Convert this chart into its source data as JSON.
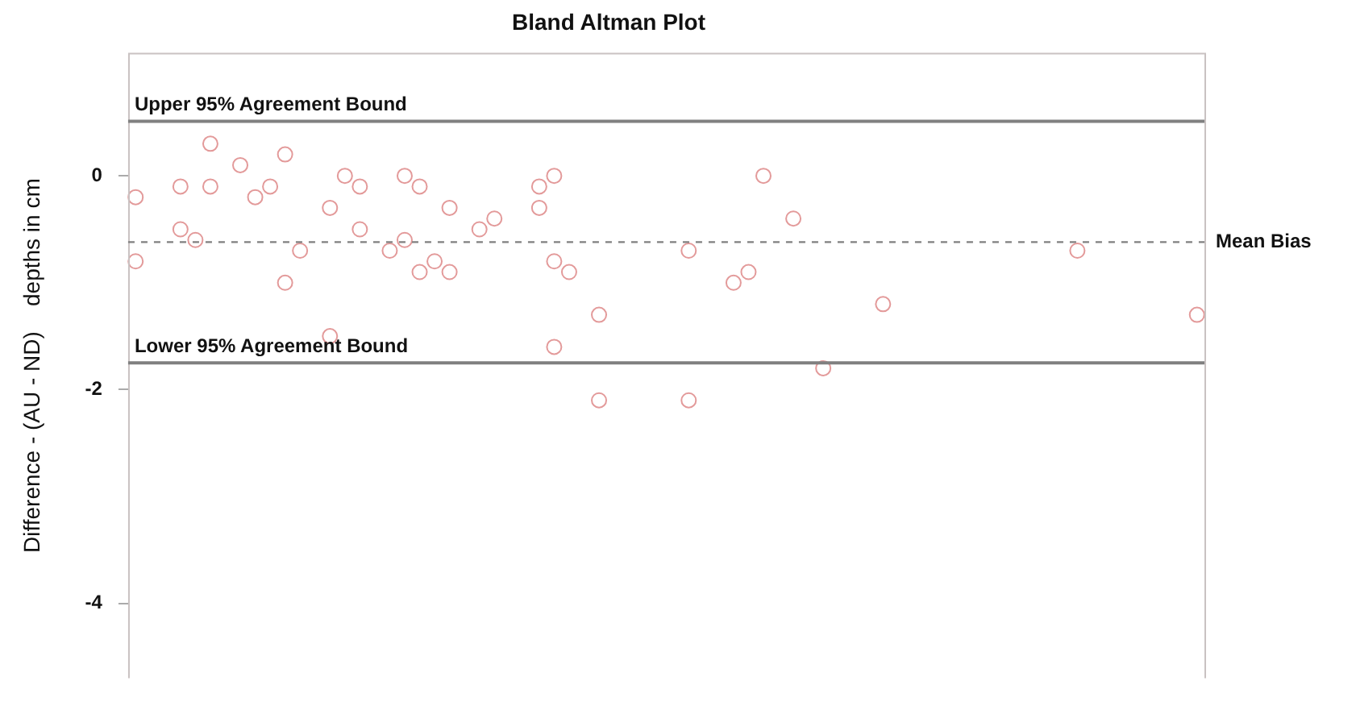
{
  "chart_data": {
    "type": "scatter",
    "title": "Bland Altman Plot",
    "ylabel": "Difference - (AU - ND)    depths in cm",
    "categories": [
      null,
      null,
      null,
      null,
      null,
      null,
      null,
      null,
      null,
      null,
      null,
      null,
      null,
      null,
      null,
      null,
      null,
      null,
      null,
      null,
      null,
      null,
      null,
      null,
      null,
      null,
      null,
      null,
      null,
      null,
      null,
      null,
      null,
      null,
      null,
      null,
      null,
      null,
      null,
      null,
      null,
      null,
      null,
      null,
      null,
      null,
      null,
      null,
      null,
      null,
      null,
      null,
      null,
      null,
      null,
      null,
      null,
      null,
      null,
      null,
      null,
      null,
      null,
      null,
      null,
      null,
      null,
      null,
      null,
      null,
      null,
      null
    ],
    "series": [
      {
        "color": "#e39a9a",
        "values": [
          -0.2,
          null,
          null,
          -0.1,
          -0.6,
          0.3,
          null,
          0.1,
          -0.2,
          -0.1,
          0.2,
          -0.7,
          null,
          -0.3,
          0,
          -0.1,
          null,
          -0.7,
          0,
          -0.1,
          -0.8,
          -0.3,
          null,
          -0.5,
          -0.4,
          null,
          null,
          -0.1,
          0,
          -0.9,
          null,
          -1.3,
          null,
          null,
          null,
          null,
          null,
          -0.7,
          null,
          null,
          -1.0,
          -0.9,
          0,
          null,
          -0.4,
          null,
          -1.8,
          null,
          null,
          null,
          -1.2,
          null,
          null,
          null,
          null,
          null,
          null,
          null,
          null,
          null,
          null,
          null,
          null,
          -0.7,
          null,
          null,
          null,
          null,
          null,
          null,
          null,
          -1.3
        ]
      },
      {
        "color": "#e39a9a",
        "values": [
          -0.8,
          null,
          null,
          -0.5,
          null,
          -0.1,
          null,
          null,
          null,
          null,
          -1.0,
          null,
          null,
          -1.5,
          null,
          -0.5,
          null,
          null,
          -0.6,
          -0.9,
          null,
          -0.9,
          null,
          null,
          null,
          null,
          null,
          -0.3,
          -0.8,
          null,
          null,
          -2.1,
          null,
          null,
          null,
          null,
          null,
          -2.1,
          null,
          null,
          null,
          null,
          null,
          null,
          null,
          null,
          null,
          null,
          null,
          null,
          null,
          null,
          null,
          null,
          null,
          null,
          null,
          null,
          null,
          null,
          null,
          null,
          null,
          null,
          null,
          null,
          null,
          null,
          null,
          null,
          null,
          null
        ]
      },
      {
        "color": "#e39a9a",
        "values": [
          null,
          null,
          null,
          null,
          null,
          null,
          null,
          null,
          null,
          null,
          null,
          null,
          null,
          null,
          null,
          null,
          null,
          null,
          null,
          null,
          null,
          null,
          null,
          null,
          null,
          null,
          null,
          null,
          -1.6,
          null,
          null,
          null,
          null,
          null,
          null,
          null,
          null,
          null,
          null,
          null,
          null,
          null,
          null,
          null,
          null,
          null,
          null,
          null,
          null,
          null,
          null,
          null,
          null,
          null,
          null,
          null,
          null,
          null,
          null,
          null,
          null,
          null,
          null,
          null,
          null,
          null,
          null,
          null,
          null,
          null,
          null,
          null
        ]
      }
    ],
    "marker": "circle",
    "ylim": [
      -4.7,
      1.15
    ],
    "yticks": [
      -4,
      -2,
      0
    ],
    "grid": false,
    "legend": false,
    "ref_lines": [
      {
        "axis": "y",
        "value": 0.51,
        "label": "Upper 95% Agreement Bound",
        "color": "#808080",
        "line_style": "solid"
      },
      {
        "axis": "y",
        "value": -0.62,
        "label": "Mean Bias",
        "color": "#808080",
        "line_style": "dashed"
      },
      {
        "axis": "y",
        "value": -1.75,
        "label": "Lower 95% Agreement Bound",
        "color": "#808080",
        "line_style": "solid"
      }
    ]
  }
}
